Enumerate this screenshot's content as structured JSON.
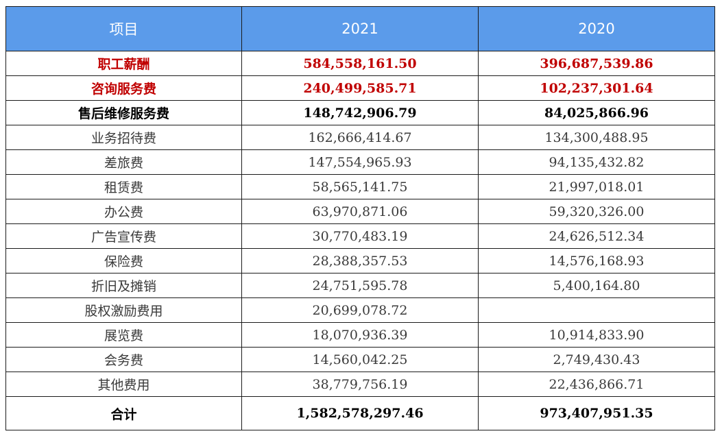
{
  "table": {
    "headers": [
      "项目",
      "2021",
      "2020"
    ],
    "rows": [
      {
        "item": "职工薪酬",
        "y2021": "584,558,161.50",
        "y2020": "396,687,539.86",
        "style": "red"
      },
      {
        "item": "咨询服务费",
        "y2021": "240,499,585.71",
        "y2020": "102,237,301.64",
        "style": "red"
      },
      {
        "item": "售后维修服务费",
        "y2021": "148,742,906.79",
        "y2020": "84,025,866.96",
        "style": "bold"
      },
      {
        "item": "业务招待费",
        "y2021": "162,666,414.67",
        "y2020": "134,300,488.95",
        "style": "normal"
      },
      {
        "item": "差旅费",
        "y2021": "147,554,965.93",
        "y2020": "94,135,432.82",
        "style": "normal"
      },
      {
        "item": "租赁费",
        "y2021": "58,565,141.75",
        "y2020": "21,997,018.01",
        "style": "normal"
      },
      {
        "item": "办公费",
        "y2021": "63,970,871.06",
        "y2020": "59,320,326.00",
        "style": "normal"
      },
      {
        "item": "广告宣传费",
        "y2021": "30,770,483.19",
        "y2020": "24,626,512.34",
        "style": "normal"
      },
      {
        "item": "保险费",
        "y2021": "28,388,357.53",
        "y2020": "14,576,168.93",
        "style": "normal"
      },
      {
        "item": "折旧及摊销",
        "y2021": "24,751,595.78",
        "y2020": "5,400,164.80",
        "style": "normal"
      },
      {
        "item": "股权激励费用",
        "y2021": "20,699,078.72",
        "y2020": "",
        "style": "normal"
      },
      {
        "item": "展览费",
        "y2021": "18,070,936.39",
        "y2020": "10,914,833.90",
        "style": "normal"
      },
      {
        "item": "会务费",
        "y2021": "14,560,042.25",
        "y2020": "2,749,430.43",
        "style": "normal"
      },
      {
        "item": "其他费用",
        "y2021": "38,779,756.19",
        "y2020": "22,436,866.71",
        "style": "normal"
      },
      {
        "item": "合计",
        "y2021": "1,582,578,297.46",
        "y2020": "973,407,951.35",
        "style": "total"
      }
    ]
  },
  "colors": {
    "header_bg": "#5b9bea",
    "header_text": "#ffffff",
    "highlight_red": "#c00000",
    "body_text": "#3a3a3a",
    "border": "#1a1a1a"
  }
}
